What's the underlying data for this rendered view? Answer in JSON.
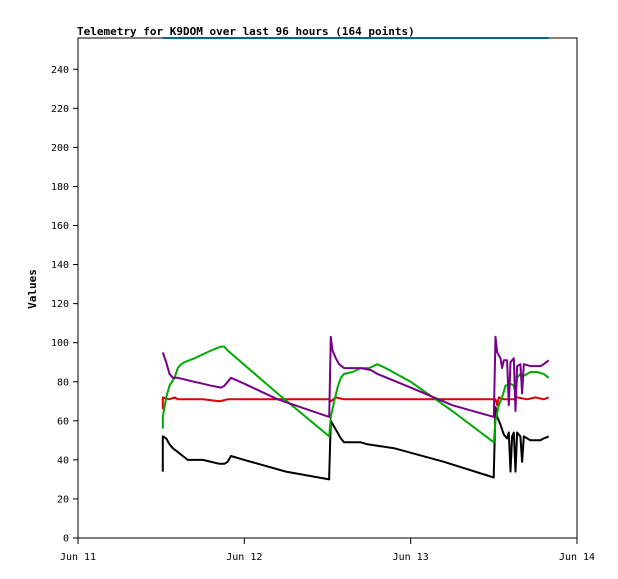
{
  "chart_data": {
    "type": "line",
    "title": "Telemetry for K9DOM over last 96 hours (164 points)",
    "xlabel": "",
    "ylabel": "Values",
    "x_ticks": [
      "Jun 11",
      "Jun 12",
      "Jun 13",
      "Jun 14"
    ],
    "xlim": [
      0,
      3
    ],
    "ylim": [
      0,
      256
    ],
    "y_ticks": [
      0,
      20,
      40,
      60,
      80,
      100,
      120,
      140,
      160,
      180,
      200,
      220,
      240
    ],
    "grid": false,
    "legend": "none",
    "series": [
      {
        "color": "#000000",
        "points": [
          [
            0.51,
            34
          ],
          [
            0.51,
            52
          ],
          [
            0.53,
            51
          ],
          [
            0.55,
            48
          ],
          [
            0.57,
            46
          ],
          [
            0.6,
            44
          ],
          [
            0.63,
            42
          ],
          [
            0.66,
            40
          ],
          [
            0.75,
            40
          ],
          [
            0.85,
            38
          ],
          [
            0.88,
            38
          ],
          [
            0.9,
            39
          ],
          [
            0.92,
            42
          ],
          [
            1.0,
            40
          ],
          [
            1.25,
            34
          ],
          [
            1.51,
            30
          ],
          [
            1.51,
            32
          ],
          [
            1.52,
            60
          ],
          [
            1.54,
            57
          ],
          [
            1.56,
            54
          ],
          [
            1.58,
            51
          ],
          [
            1.6,
            49
          ],
          [
            1.65,
            49
          ],
          [
            1.7,
            49
          ],
          [
            1.74,
            48
          ],
          [
            1.9,
            46
          ],
          [
            2.2,
            39
          ],
          [
            2.5,
            31
          ],
          [
            2.5,
            33
          ],
          [
            2.51,
            67
          ],
          [
            2.52,
            62
          ],
          [
            2.54,
            58
          ],
          [
            2.56,
            53
          ],
          [
            2.58,
            51
          ],
          [
            2.59,
            54
          ],
          [
            2.6,
            34
          ],
          [
            2.61,
            52
          ],
          [
            2.62,
            54
          ],
          [
            2.63,
            34
          ],
          [
            2.64,
            54
          ],
          [
            2.66,
            52
          ],
          [
            2.67,
            39
          ],
          [
            2.68,
            52
          ],
          [
            2.72,
            50
          ],
          [
            2.78,
            50
          ],
          [
            2.8,
            51
          ],
          [
            2.83,
            52
          ]
        ]
      },
      {
        "color": "#dd0000",
        "points": [
          [
            0.51,
            66
          ],
          [
            0.51,
            72
          ],
          [
            0.55,
            71
          ],
          [
            0.58,
            72
          ],
          [
            0.6,
            71
          ],
          [
            0.65,
            71
          ],
          [
            0.75,
            71
          ],
          [
            0.85,
            70
          ],
          [
            0.9,
            71
          ],
          [
            1.0,
            71
          ],
          [
            1.2,
            71
          ],
          [
            1.4,
            71
          ],
          [
            1.51,
            71
          ],
          [
            1.52,
            70
          ],
          [
            1.55,
            72
          ],
          [
            1.6,
            71
          ],
          [
            1.75,
            71
          ],
          [
            1.9,
            71
          ],
          [
            2.0,
            71
          ],
          [
            2.2,
            71
          ],
          [
            2.4,
            71
          ],
          [
            2.5,
            71
          ],
          [
            2.51,
            71
          ],
          [
            2.52,
            68
          ],
          [
            2.53,
            72
          ],
          [
            2.56,
            71
          ],
          [
            2.62,
            71
          ],
          [
            2.64,
            72
          ],
          [
            2.7,
            71
          ],
          [
            2.75,
            72
          ],
          [
            2.8,
            71
          ],
          [
            2.83,
            72
          ]
        ]
      },
      {
        "color": "#00aa00",
        "points": [
          [
            0.51,
            56
          ],
          [
            0.51,
            62
          ],
          [
            0.53,
            72
          ],
          [
            0.55,
            78
          ],
          [
            0.58,
            82
          ],
          [
            0.6,
            87
          ],
          [
            0.62,
            89
          ],
          [
            0.64,
            90
          ],
          [
            0.7,
            92
          ],
          [
            0.75,
            94
          ],
          [
            0.8,
            96
          ],
          [
            0.86,
            98
          ],
          [
            0.88,
            98
          ],
          [
            0.9,
            96
          ],
          [
            1.2,
            74
          ],
          [
            1.51,
            52
          ],
          [
            1.52,
            62
          ],
          [
            1.54,
            70
          ],
          [
            1.56,
            77
          ],
          [
            1.58,
            82
          ],
          [
            1.6,
            84
          ],
          [
            1.65,
            85
          ],
          [
            1.7,
            87
          ],
          [
            1.75,
            87
          ],
          [
            1.8,
            89
          ],
          [
            1.85,
            87
          ],
          [
            2.0,
            80
          ],
          [
            2.25,
            65
          ],
          [
            2.5,
            49
          ],
          [
            2.51,
            60
          ],
          [
            2.53,
            68
          ],
          [
            2.55,
            72
          ],
          [
            2.57,
            78
          ],
          [
            2.6,
            79
          ],
          [
            2.62,
            78
          ],
          [
            2.63,
            74
          ],
          [
            2.64,
            82
          ],
          [
            2.66,
            84
          ],
          [
            2.68,
            83
          ],
          [
            2.72,
            85
          ],
          [
            2.76,
            85
          ],
          [
            2.8,
            84
          ],
          [
            2.83,
            82
          ]
        ]
      },
      {
        "color": "#770088",
        "points": [
          [
            0.51,
            95
          ],
          [
            0.53,
            90
          ],
          [
            0.55,
            84
          ],
          [
            0.57,
            82
          ],
          [
            0.6,
            82
          ],
          [
            0.65,
            81
          ],
          [
            0.7,
            80
          ],
          [
            0.75,
            79
          ],
          [
            0.8,
            78
          ],
          [
            0.86,
            77
          ],
          [
            0.88,
            78
          ],
          [
            0.9,
            80
          ],
          [
            0.92,
            82
          ],
          [
            1.0,
            79
          ],
          [
            1.2,
            71
          ],
          [
            1.51,
            62
          ],
          [
            1.52,
            103
          ],
          [
            1.53,
            96
          ],
          [
            1.55,
            92
          ],
          [
            1.57,
            89
          ],
          [
            1.6,
            87
          ],
          [
            1.7,
            87
          ],
          [
            1.76,
            86
          ],
          [
            1.8,
            84
          ],
          [
            2.0,
            77
          ],
          [
            2.25,
            68
          ],
          [
            2.5,
            62
          ],
          [
            2.51,
            103
          ],
          [
            2.52,
            95
          ],
          [
            2.54,
            92
          ],
          [
            2.55,
            87
          ],
          [
            2.56,
            91
          ],
          [
            2.58,
            91
          ],
          [
            2.59,
            68
          ],
          [
            2.6,
            90
          ],
          [
            2.62,
            92
          ],
          [
            2.63,
            65
          ],
          [
            2.64,
            88
          ],
          [
            2.66,
            89
          ],
          [
            2.67,
            74
          ],
          [
            2.68,
            89
          ],
          [
            2.72,
            88
          ],
          [
            2.78,
            88
          ],
          [
            2.8,
            89
          ],
          [
            2.83,
            91
          ]
        ]
      }
    ],
    "top_segment": {
      "color": "#006699",
      "value": 256,
      "x_range": [
        0.51,
        2.83
      ]
    }
  }
}
